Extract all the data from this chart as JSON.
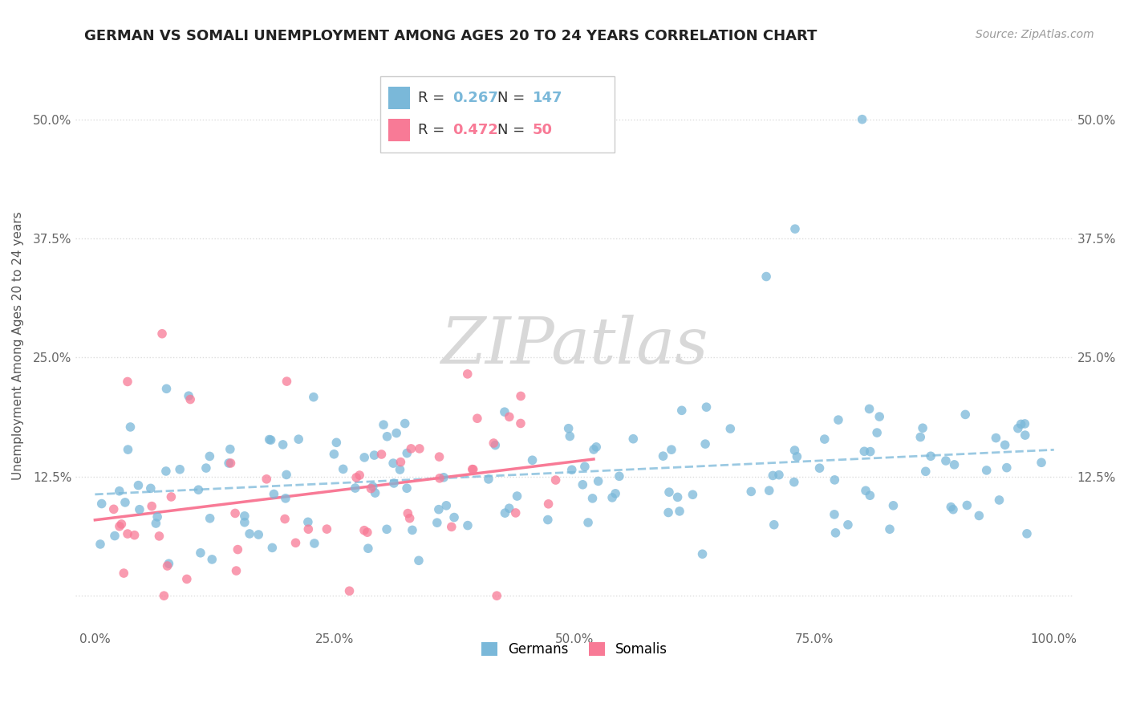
{
  "title": "GERMAN VS SOMALI UNEMPLOYMENT AMONG AGES 20 TO 24 YEARS CORRELATION CHART",
  "source": "Source: ZipAtlas.com",
  "ylabel": "Unemployment Among Ages 20 to 24 years",
  "xlim": [
    -0.02,
    1.02
  ],
  "ylim": [
    -0.035,
    0.56
  ],
  "xticks": [
    0.0,
    0.25,
    0.5,
    0.75,
    1.0
  ],
  "xticklabels": [
    "0.0%",
    "25.0%",
    "50.0%",
    "75.0%",
    "100.0%"
  ],
  "yticks": [
    0.0,
    0.125,
    0.25,
    0.375,
    0.5
  ],
  "yticklabels": [
    "",
    "12.5%",
    "25.0%",
    "37.5%",
    "50.0%"
  ],
  "german_color": "#7ab8d9",
  "somali_color": "#f87a96",
  "german_R": 0.267,
  "german_N": 147,
  "somali_R": 0.472,
  "somali_N": 50,
  "watermark": "ZIPatlas",
  "legend_label_german": "Germans",
  "legend_label_somali": "Somalis",
  "grid_color": "#dddddd",
  "title_fontsize": 13,
  "tick_fontsize": 11,
  "ylabel_fontsize": 11
}
